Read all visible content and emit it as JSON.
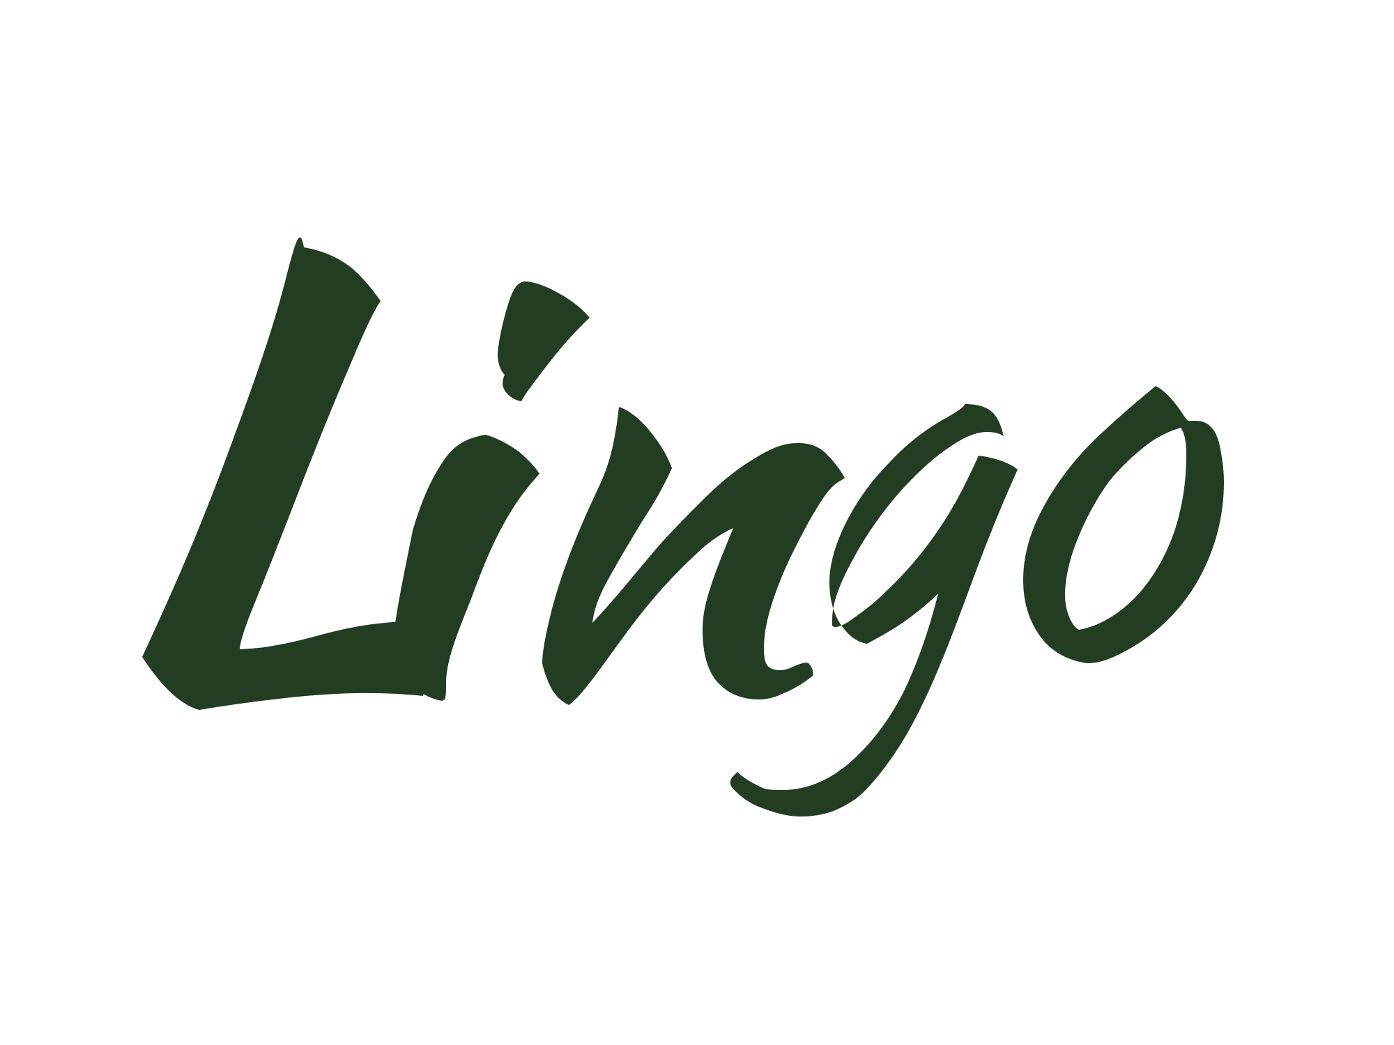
{
  "logo": {
    "wordmark": "Lingo",
    "color": "#233d22",
    "background": "#ffffff"
  }
}
